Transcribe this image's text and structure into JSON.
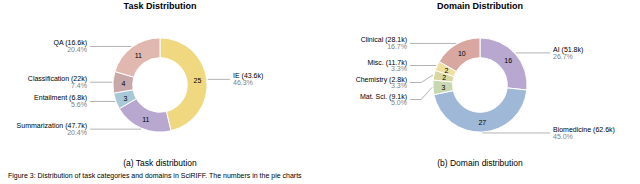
{
  "chart_data": [
    {
      "type": "pie",
      "title": "Task Distribution",
      "subtitle": "(a) Task distribution",
      "categories": [
        "IE (43.6k)",
        "Summarization (47.7k)",
        "Entailment (6.8k)",
        "Classification (22k)",
        "QA (16.6k)"
      ],
      "values": [
        46.3,
        20.4,
        5.6,
        7.4,
        20.4
      ],
      "value_labels": [
        "46.3%",
        "20.4%",
        "5.6%",
        "7.4%",
        "20.4%"
      ],
      "counts": [
        25,
        11,
        3,
        4,
        11
      ],
      "colors": [
        "#f0d880",
        "#b8a8d0",
        "#a8c8d8",
        "#c8a8a8",
        "#e0b8b0"
      ]
    },
    {
      "type": "pie",
      "title": "Domain Distribution",
      "subtitle": "(b) Domain distribution",
      "categories": [
        "AI (51.8k)",
        "Biomedicine (62.6k)",
        "Mat. Sci. (9.1k)",
        "Chemistry (2.8k)",
        "Misc. (11.7k)",
        "Clinical (28.1k)"
      ],
      "values": [
        26.7,
        45.0,
        5.0,
        3.3,
        3.3,
        16.7
      ],
      "value_labels": [
        "26.7%",
        "45.0%",
        "5.0%",
        "3.3%",
        "3.3%",
        "16.7%"
      ],
      "counts": [
        16,
        27,
        3,
        2,
        2,
        10
      ],
      "colors": [
        "#b8a8d0",
        "#a0b8d8",
        "#c8d8b0",
        "#d8d8a0",
        "#f0e0a0",
        "#d8a8a0"
      ]
    }
  ],
  "caption": "Figure 3: Distribution of task categories and domains in SciRIFF. The numbers in the pie charts"
}
